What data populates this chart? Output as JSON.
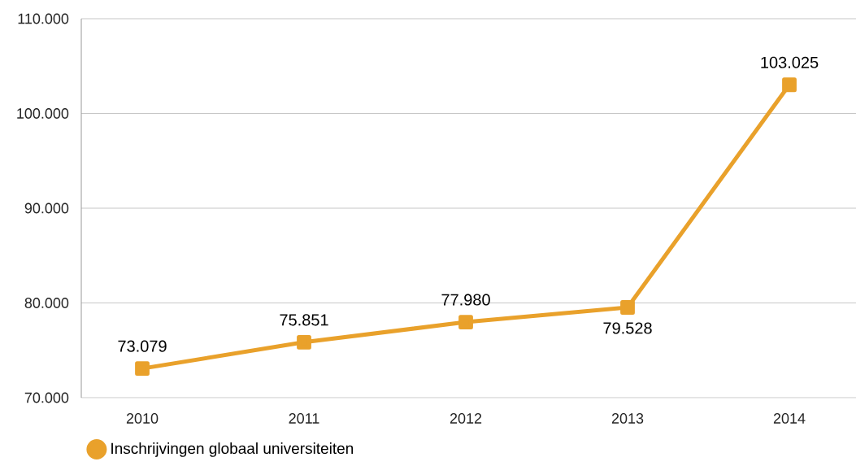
{
  "chart_data": {
    "type": "line",
    "categories": [
      "2010",
      "2011",
      "2012",
      "2013",
      "2014"
    ],
    "series": [
      {
        "name": "Inschrijvingen globaal universiteiten",
        "color": "#e9a12b",
        "values": [
          73079,
          75851,
          77980,
          79528,
          103025
        ],
        "value_labels": [
          "73.079",
          "75.851",
          "77.980",
          "79.528",
          "103.025"
        ]
      }
    ],
    "ylim": [
      70000,
      110000
    ],
    "yticks": [
      {
        "value": 70000,
        "label": "70.000"
      },
      {
        "value": 80000,
        "label": "80.000"
      },
      {
        "value": 90000,
        "label": "90.000"
      },
      {
        "value": 100000,
        "label": "100.000"
      },
      {
        "value": 110000,
        "label": "110.000"
      }
    ],
    "grid": "y",
    "legend": "bottom left",
    "marker": "square",
    "line_style": "solid"
  }
}
